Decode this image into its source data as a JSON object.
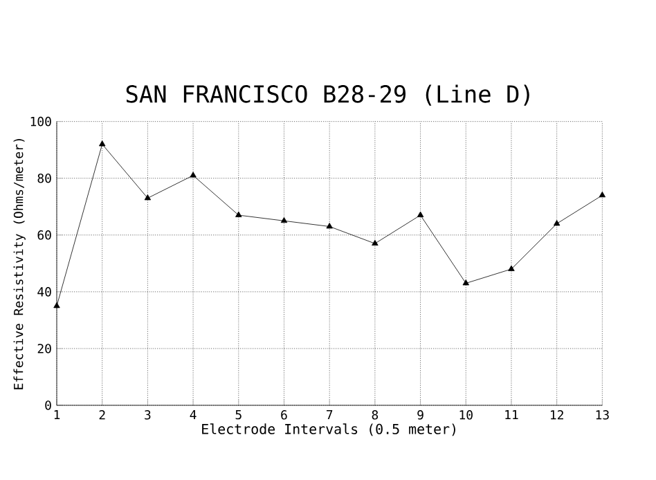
{
  "chart_data": {
    "type": "line",
    "title": "SAN FRANCISCO B28-29 (Line D)",
    "xlabel": "Electrode Intervals (0.5 meter)",
    "ylabel": "Effective Resistivity (Ohms/meter)",
    "x": [
      1,
      2,
      3,
      4,
      5,
      6,
      7,
      8,
      9,
      10,
      11,
      12,
      13
    ],
    "values": [
      35,
      92,
      73,
      81,
      67,
      65,
      63,
      57,
      67,
      43,
      48,
      64,
      74
    ],
    "color": "#000000",
    "marker": "triangle",
    "line_style": "solid",
    "grid": true,
    "xlim": [
      1,
      13
    ],
    "xticks": [
      1,
      2,
      3,
      4,
      5,
      6,
      7,
      8,
      9,
      10,
      11,
      12,
      13
    ],
    "ylim": [
      0,
      100
    ],
    "yticks": [
      0,
      20,
      40,
      60,
      80,
      100
    ]
  }
}
